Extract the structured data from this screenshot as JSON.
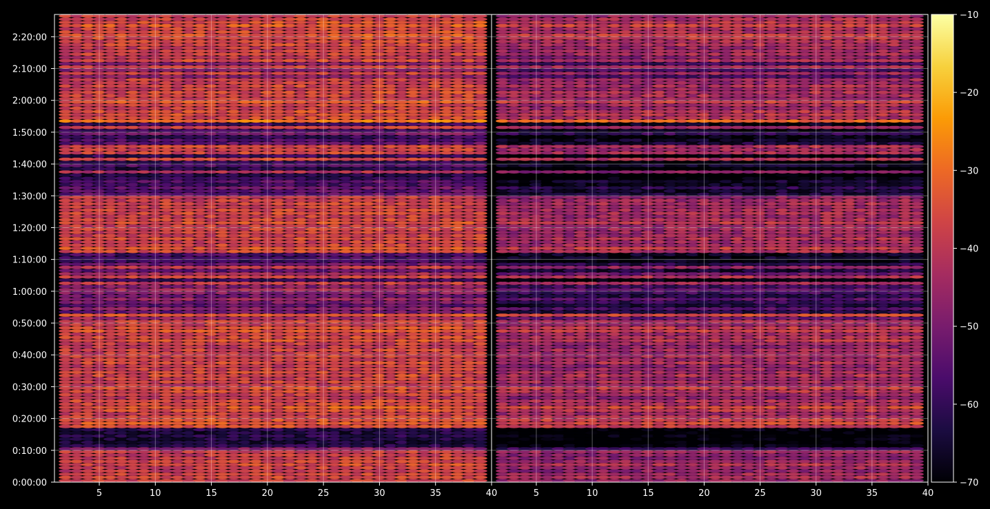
{
  "chart_data": {
    "type": "heatmap",
    "title": "",
    "xlabel": "",
    "ylabel": "",
    "background": "#000000",
    "colormap": "inferno",
    "colormap_stops": [
      "#000004",
      "#1b0c41",
      "#4a0c6b",
      "#781c6d",
      "#a52c60",
      "#cf4446",
      "#ed6925",
      "#fb9b06",
      "#f7d13d",
      "#fcffa4"
    ],
    "grid": true,
    "panels": [
      {
        "name": "left",
        "xlim": [
          1,
          40
        ],
        "xticks": [
          5,
          10,
          15,
          20,
          25,
          30,
          35,
          40
        ],
        "xticklabels": [
          "5",
          "10",
          "15",
          "20",
          "25",
          "30",
          "35",
          "40"
        ],
        "columns": [
          2,
          39
        ]
      },
      {
        "name": "right",
        "xlim": [
          1,
          40
        ],
        "xticks": [
          5,
          10,
          15,
          20,
          25,
          30,
          35,
          40
        ],
        "xticklabels": [
          "5",
          "10",
          "15",
          "20",
          "25",
          "30",
          "35",
          "40"
        ],
        "columns": [
          2,
          39
        ]
      }
    ],
    "yaxis": {
      "unit": "seconds",
      "ylim": [
        0,
        8820
      ],
      "ticks": [
        0,
        600,
        1200,
        1800,
        2400,
        3000,
        3600,
        4200,
        4800,
        5400,
        6000,
        6600,
        7200,
        7800,
        8400
      ],
      "ticklabels": [
        "0:00:00",
        "0:10:00",
        "0:20:00",
        "0:30:00",
        "0:40:00",
        "0:50:00",
        "1:00:00",
        "1:10:00",
        "1:20:00",
        "1:30:00",
        "1:40:00",
        "1:50:00",
        "2:00:00",
        "2:10:00",
        "2:20:00"
      ]
    },
    "colorbar": {
      "range": [
        -70,
        -10
      ],
      "ticks": [
        -70,
        -60,
        -50,
        -40,
        -30,
        -20,
        -10
      ],
      "ticklabels": [
        "−70",
        "−60",
        "−50",
        "−40",
        "−30",
        "−20",
        "−10"
      ]
    },
    "rows": {
      "step_seconds": 60,
      "left_base_level": [
        -38,
        -36,
        -37,
        -39,
        -38,
        -36,
        -37,
        -38,
        -39,
        -38,
        -48,
        -62,
        -64,
        -63,
        -62,
        -64,
        -62,
        -35,
        -33,
        -34,
        -36,
        -38,
        -35,
        -33,
        -37,
        -36,
        -40,
        -38,
        -36,
        -35,
        -39,
        -37,
        -38,
        -36,
        -37,
        -38,
        -39,
        -36,
        -38,
        -37,
        -38,
        -37,
        -40,
        -38,
        -35,
        -36,
        -37,
        -34,
        -35,
        -38,
        -37,
        -44,
        -33,
        -52,
        -47,
        -54,
        -50,
        -46,
        -52,
        -48,
        -44,
        -49,
        -39,
        -60,
        -38,
        -44,
        -54,
        -40,
        -52,
        -59,
        -57,
        -57,
        -36,
        -34,
        -37,
        -38,
        -36,
        -38,
        -38,
        -37,
        -38,
        -35,
        -37,
        -38,
        -36,
        -37,
        -38,
        -37,
        -38,
        -39,
        -54,
        -55,
        -52,
        -58,
        -55,
        -60,
        -63,
        -42,
        -62,
        -55,
        -60,
        -36,
        -60,
        -37,
        -38,
        -36,
        -54,
        -56,
        -60,
        -50,
        -58,
        -38,
        -58,
        -28,
        -36,
        -35,
        -35,
        -38,
        -37,
        -33,
        -38,
        -37,
        -36,
        -38,
        -37,
        -39,
        -38,
        -48,
        -38,
        -48,
        -37,
        -49,
        -36,
        -40,
        -37,
        -38,
        -38,
        -36,
        -37,
        -35,
        -34,
        -36,
        -37,
        -33,
        -35,
        -37,
        -38
      ],
      "right_offset": [
        -8,
        -6,
        -7,
        -8,
        -7,
        -6,
        -8,
        -9,
        -8,
        -6,
        -10,
        -8,
        -8,
        -8,
        -8,
        -8,
        -8,
        -4,
        -3,
        -4,
        -6,
        -7,
        -5,
        -4,
        -6,
        -6,
        -7,
        -6,
        -5,
        -4,
        -7,
        -6,
        -7,
        -6,
        -7,
        -7,
        -8,
        -6,
        -7,
        -6,
        -7,
        -6,
        -8,
        -7,
        -6,
        -6,
        -7,
        -4,
        -5,
        -7,
        -6,
        -9,
        -3,
        -10,
        -9,
        -10,
        -10,
        -9,
        -10,
        -10,
        -9,
        -10,
        -5,
        -10,
        -4,
        -8,
        -10,
        -6,
        -10,
        -10,
        -10,
        -10,
        -6,
        -5,
        -7,
        -7,
        -6,
        -7,
        -7,
        -7,
        -7,
        -5,
        -6,
        -7,
        -6,
        -7,
        -7,
        -6,
        -7,
        -8,
        -10,
        -10,
        -9,
        -10,
        -10,
        -10,
        -10,
        -6,
        -10,
        -10,
        -10,
        -6,
        -10,
        -6,
        -7,
        -6,
        -10,
        -10,
        -10,
        -9,
        -10,
        -7,
        -10,
        -4,
        -7,
        -6,
        -6,
        -7,
        -6,
        -5,
        -7,
        -6,
        -6,
        -7,
        -6,
        -7,
        -7,
        -9,
        -7,
        -9,
        -6,
        -9,
        -6,
        -8,
        -6,
        -7,
        -7,
        -6,
        -6,
        -5,
        -4,
        -6,
        -6,
        -4,
        -5,
        -6,
        -7
      ]
    }
  }
}
